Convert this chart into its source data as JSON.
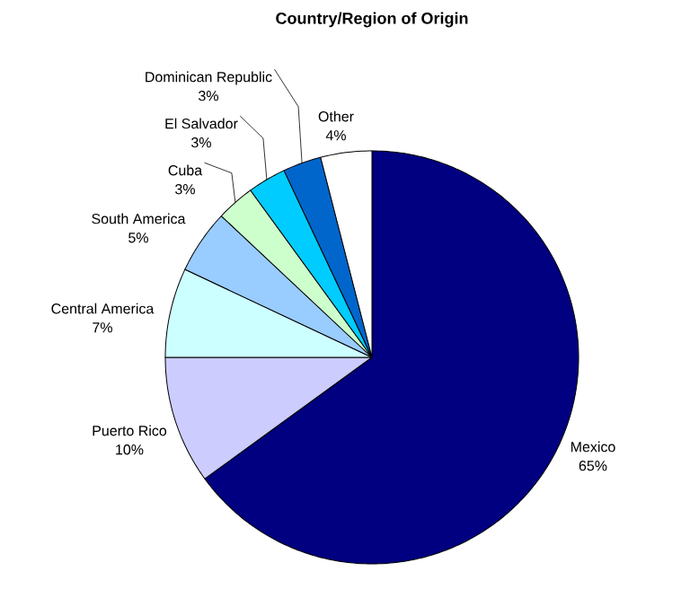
{
  "chart_data": {
    "type": "pie",
    "title": "Country/Region of Origin",
    "categories": [
      "Mexico",
      "Puerto Rico",
      "Central America",
      "South America",
      "Cuba",
      "El Salvador",
      "Dominican Republic",
      "Other"
    ],
    "values": [
      65,
      10,
      7,
      5,
      3,
      3,
      3,
      4
    ],
    "value_labels": [
      "65%",
      "10%",
      "7%",
      "5%",
      "3%",
      "3%",
      "3%",
      "4%"
    ],
    "colors": [
      "#000080",
      "#ccccff",
      "#ccffff",
      "#99ccff",
      "#ccffcc",
      "#00ccff",
      "#0066cc",
      "#ffffff"
    ]
  }
}
